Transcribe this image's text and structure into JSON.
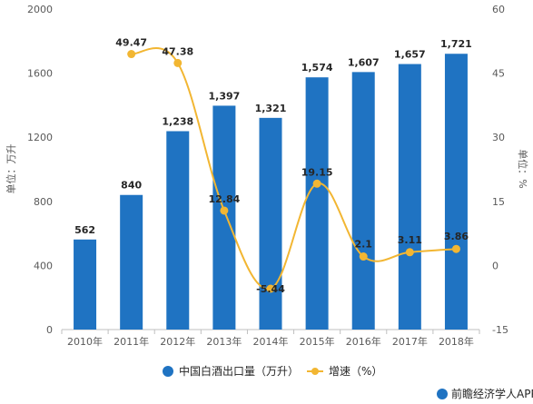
{
  "chart_data": {
    "type": "bar",
    "categories": [
      "2010年",
      "2011年",
      "2012年",
      "2013年",
      "2014年",
      "2015年",
      "2016年",
      "2017年",
      "2018年"
    ],
    "series": [
      {
        "name": "中国白酒出口量（万升）",
        "type": "bar",
        "axis": "left",
        "values": [
          562,
          840,
          1238,
          1397,
          1321,
          1574,
          1607,
          1657,
          1721
        ],
        "labels": [
          "562",
          "840",
          "1,238",
          "1,397",
          "1,321",
          "1,574",
          "1,607",
          "1,657",
          "1,721"
        ],
        "color": "#1f73c2"
      },
      {
        "name": "增速（%）",
        "type": "line",
        "axis": "right",
        "values": [
          null,
          49.47,
          47.38,
          12.84,
          -5.44,
          19.15,
          2.1,
          3.11,
          3.86
        ],
        "labels": [
          "",
          "49.47",
          "47.38",
          "12.84",
          "-5.44",
          "19.15",
          "2.1",
          "3.11",
          "3.86"
        ],
        "color": "#f2b632"
      }
    ],
    "y_left": {
      "label": "单位：万升",
      "range": [
        0,
        2000
      ],
      "ticks": [
        "0",
        "400",
        "800",
        "1200",
        "1600",
        "2000"
      ]
    },
    "y_right": {
      "label": "单位：%",
      "range": [
        -15,
        60
      ],
      "ticks": [
        "-15",
        "0",
        "15",
        "30",
        "45",
        "60"
      ]
    },
    "legend_position": "bottom",
    "grid": false
  },
  "footer": {
    "text": "前瞻经济学人APP"
  }
}
